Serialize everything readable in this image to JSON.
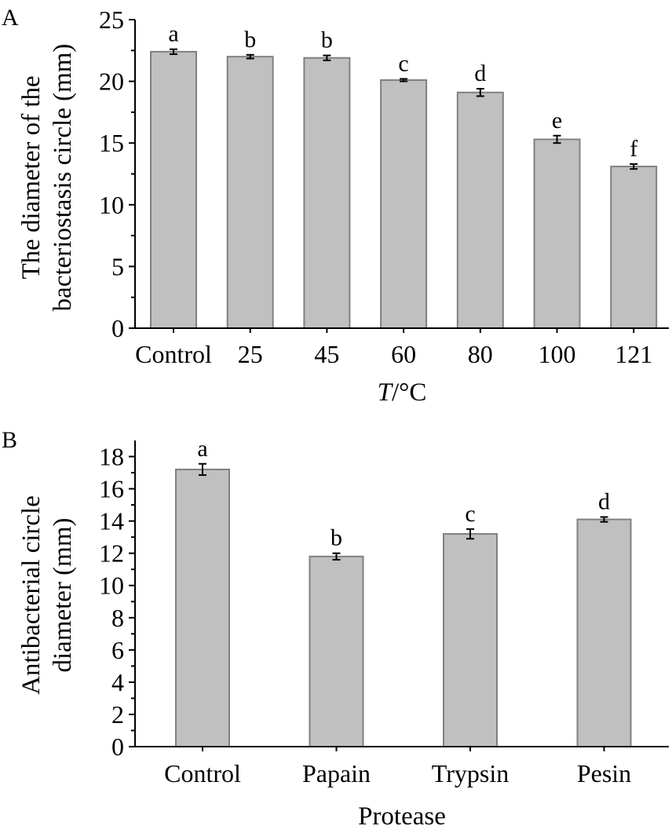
{
  "chart_data": [
    {
      "type": "bar",
      "panel_label": "A",
      "title": "",
      "xlabel": "T/°C",
      "xlabel_italic": "T",
      "xlabel_rest": "/°C",
      "ylabel": "The diameter of the bacteriostasis circle (mm)",
      "ylabel_lines": [
        "The diameter of the",
        "bacteriostasis circle (mm)"
      ],
      "ylim": [
        0,
        25
      ],
      "yticks": [
        0,
        5,
        10,
        15,
        20,
        25
      ],
      "categories": [
        "Control",
        "25",
        "45",
        "60",
        "80",
        "100",
        "121"
      ],
      "values": [
        22.4,
        22.0,
        21.9,
        20.1,
        19.1,
        15.3,
        13.1
      ],
      "errors": [
        0.2,
        0.15,
        0.2,
        0.1,
        0.3,
        0.3,
        0.2
      ],
      "significance": [
        "a",
        "b",
        "b",
        "c",
        "d",
        "e",
        "f"
      ],
      "bar_color": "#c0c0c0",
      "bar_edge_color": "#808080",
      "grid": false
    },
    {
      "type": "bar",
      "panel_label": "B",
      "title": "",
      "xlabel": "Protease",
      "ylabel": "Antibacterial circle diameter (mm)",
      "ylabel_lines": [
        "Antibacterial circle",
        "diameter (mm)"
      ],
      "ylim": [
        0,
        19
      ],
      "yticks": [
        0,
        2,
        4,
        6,
        8,
        10,
        12,
        14,
        16,
        18
      ],
      "categories": [
        "Control",
        "Papain",
        "Trypsin",
        "Pesin"
      ],
      "values": [
        17.2,
        11.8,
        13.2,
        14.1
      ],
      "errors": [
        0.35,
        0.2,
        0.3,
        0.15
      ],
      "significance": [
        "a",
        "b",
        "c",
        "d"
      ],
      "bar_color": "#c0c0c0",
      "bar_edge_color": "#808080",
      "grid": false
    }
  ]
}
